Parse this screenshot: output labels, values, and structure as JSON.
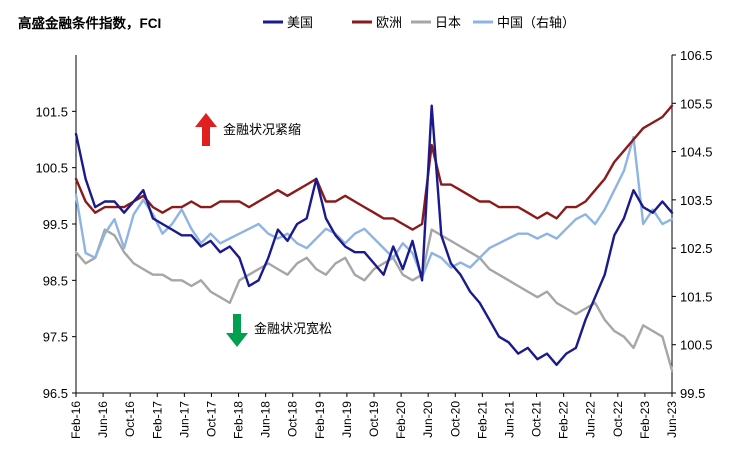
{
  "chart_data": {
    "type": "line",
    "title": "高盛金融条件指数，FCI",
    "x_labels": [
      "Feb-16",
      "Jun-16",
      "Oct-16",
      "Feb-17",
      "Jun-17",
      "Oct-17",
      "Feb-18",
      "Jun-18",
      "Oct-18",
      "Feb-19",
      "Jun-19",
      "Oct-19",
      "Feb-20",
      "Jun-20",
      "Oct-20",
      "Feb-21",
      "Jun-21",
      "Oct-21",
      "Feb-22",
      "Jun-22",
      "Oct-22",
      "Feb-23",
      "Jun-23"
    ],
    "y_left": {
      "min": 96.5,
      "max": 102.5,
      "ticks": [
        "96.5",
        "97.5",
        "98.5",
        "99.5",
        "100.5",
        "101.5"
      ]
    },
    "y_right": {
      "min": 99.5,
      "max": 106.5,
      "ticks": [
        "99.5",
        "100.5",
        "101.5",
        "102.5",
        "103.5",
        "104.5",
        "105.5",
        "106.5"
      ]
    },
    "series": [
      {
        "name": "美国",
        "color": "#1A1A8C",
        "axis": "left",
        "values": [
          101.1,
          100.3,
          99.8,
          99.9,
          99.9,
          99.7,
          99.9,
          100.1,
          99.6,
          99.5,
          99.4,
          99.3,
          99.3,
          99.1,
          99.2,
          99.0,
          99.1,
          98.9,
          98.4,
          98.5,
          98.9,
          99.4,
          99.2,
          99.5,
          99.6,
          100.3,
          99.6,
          99.3,
          99.1,
          99.0,
          99.0,
          98.8,
          98.6,
          99.1,
          98.7,
          99.2,
          98.5,
          101.6,
          99.3,
          98.8,
          98.6,
          98.3,
          98.1,
          97.8,
          97.5,
          97.4,
          97.2,
          97.3,
          97.1,
          97.2,
          97.0,
          97.2,
          97.3,
          97.8,
          98.2,
          98.6,
          99.3,
          99.6,
          100.1,
          99.8,
          99.7,
          99.9,
          99.7
        ]
      },
      {
        "name": "欧洲",
        "color": "#8B1A1A",
        "axis": "left",
        "values": [
          100.3,
          99.9,
          99.7,
          99.8,
          99.8,
          99.8,
          99.9,
          100.0,
          99.8,
          99.7,
          99.8,
          99.8,
          99.9,
          99.8,
          99.8,
          99.9,
          99.9,
          99.9,
          99.8,
          99.9,
          100.0,
          100.1,
          100.0,
          100.1,
          100.2,
          100.3,
          99.9,
          99.9,
          100.0,
          99.9,
          99.8,
          99.7,
          99.6,
          99.6,
          99.5,
          99.4,
          99.5,
          100.9,
          100.2,
          100.2,
          100.1,
          100.0,
          99.9,
          99.9,
          99.8,
          99.8,
          99.8,
          99.7,
          99.6,
          99.7,
          99.6,
          99.8,
          99.8,
          99.9,
          100.1,
          100.3,
          100.6,
          100.8,
          101.0,
          101.2,
          101.3,
          101.4,
          101.6
        ]
      },
      {
        "name": "日本",
        "color": "#A6A6A6",
        "axis": "left",
        "values": [
          99.0,
          98.8,
          98.9,
          99.4,
          99.3,
          99.0,
          98.8,
          98.7,
          98.6,
          98.6,
          98.5,
          98.5,
          98.4,
          98.5,
          98.3,
          98.2,
          98.1,
          98.5,
          98.6,
          98.7,
          98.8,
          98.7,
          98.6,
          98.8,
          98.9,
          98.7,
          98.6,
          98.8,
          98.9,
          98.6,
          98.5,
          98.7,
          98.8,
          98.9,
          98.6,
          98.5,
          98.6,
          99.4,
          99.3,
          99.2,
          99.1,
          99.0,
          98.9,
          98.7,
          98.6,
          98.5,
          98.4,
          98.3,
          98.2,
          98.3,
          98.1,
          98.0,
          97.9,
          98.0,
          98.1,
          97.8,
          97.6,
          97.5,
          97.3,
          97.7,
          97.6,
          97.5,
          96.9
        ]
      },
      {
        "name": "中国（右轴）",
        "color": "#8EB4E3",
        "axis": "right",
        "values": [
          103.6,
          102.4,
          102.3,
          102.8,
          103.1,
          102.5,
          103.2,
          103.5,
          103.2,
          102.8,
          103.0,
          103.3,
          102.9,
          102.6,
          102.8,
          102.6,
          102.7,
          102.8,
          102.9,
          103.0,
          102.8,
          102.7,
          102.8,
          102.6,
          102.5,
          102.7,
          102.9,
          102.8,
          102.6,
          102.8,
          102.9,
          102.7,
          102.5,
          102.3,
          102.6,
          102.4,
          101.9,
          102.4,
          102.3,
          102.1,
          102.2,
          102.1,
          102.3,
          102.5,
          102.6,
          102.7,
          102.8,
          102.8,
          102.7,
          102.8,
          102.7,
          102.9,
          103.1,
          103.2,
          103.0,
          103.3,
          103.7,
          104.1,
          104.8,
          103.0,
          103.3,
          103.0,
          103.1
        ]
      }
    ],
    "annotations": [
      {
        "text": "金融状况紧缩",
        "arrow": "up",
        "color": "#E02020"
      },
      {
        "text": "金融状况宽松",
        "arrow": "down",
        "color": "#00A050"
      }
    ]
  }
}
